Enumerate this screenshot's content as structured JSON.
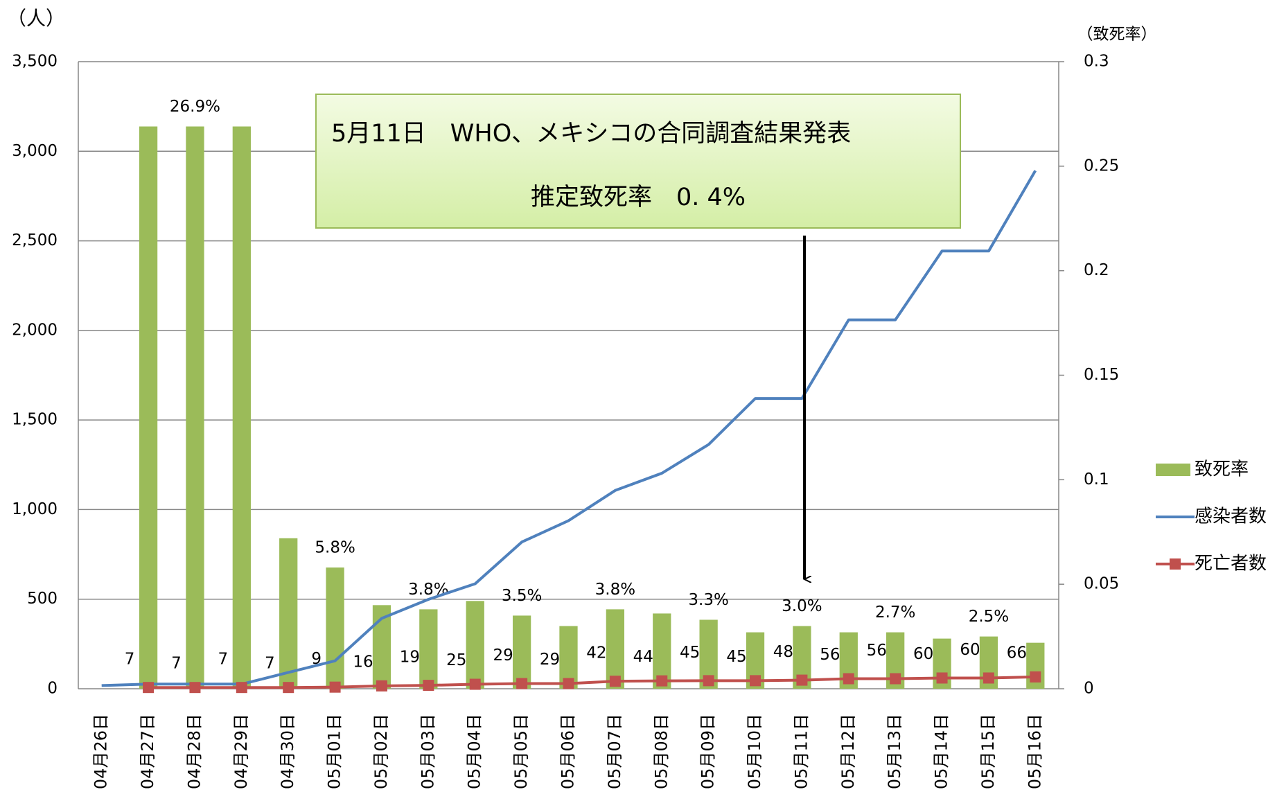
{
  "chart_data": {
    "type": "combo",
    "ylabel": "（人）",
    "y2label": "（致死率）",
    "categories": [
      "04月26日",
      "04月27日",
      "04月28日",
      "04月29日",
      "04月30日",
      "05月01日",
      "05月02日",
      "05月03日",
      "05月04日",
      "05月05日",
      "05月06日",
      "05月07日",
      "05月08日",
      "05月09日",
      "05月10日",
      "05月11日",
      "05月12日",
      "05月13日",
      "05月14日",
      "05月15日",
      "05月16日"
    ],
    "ylim": [
      0,
      3500
    ],
    "yticks": [
      0,
      500,
      {
        "value": 1000,
        "label": "1,000"
      },
      {
        "value": 1500,
        "label": "1,500"
      },
      {
        "value": 2000,
        "label": "2,000"
      },
      {
        "value": 2500,
        "label": "2,500"
      },
      {
        "value": 3000,
        "label": "3,000"
      },
      {
        "value": 3500,
        "label": "3,500"
      }
    ],
    "y2lim": [
      0,
      0.3
    ],
    "y2ticks": [
      0,
      0.05,
      0.1,
      0.15,
      0.2,
      0.25,
      0.3
    ],
    "grid": true,
    "legend": "right",
    "series": [
      {
        "name": "致死率",
        "type": "bar",
        "axis": "y2",
        "color": "#9bbb59",
        "values": [
          null,
          0.269,
          0.269,
          0.269,
          0.072,
          0.058,
          0.04,
          0.038,
          0.042,
          0.035,
          0.03,
          0.038,
          0.036,
          0.033,
          0.027,
          0.03,
          0.027,
          0.027,
          0.024,
          0.025,
          0.022
        ],
        "value_labels": [
          null,
          null,
          "26.9%",
          null,
          null,
          "5.8%",
          null,
          "3.8%",
          null,
          "3.5%",
          null,
          "3.8%",
          null,
          "3.3%",
          null,
          "3.0%",
          null,
          "2.7%",
          null,
          "2.5%",
          null
        ]
      },
      {
        "name": "感染者数",
        "type": "line",
        "color": "#4f81bd",
        "values": [
          18,
          26,
          26,
          26,
          91,
          156,
          393,
          499,
          586,
          819,
          938,
          1107,
          1203,
          1363,
          1620,
          1620,
          2059,
          2059,
          2443,
          2443,
          2892
        ]
      },
      {
        "name": "死亡者数",
        "type": "line",
        "markers": true,
        "data_labels": true,
        "color": "#c0504d",
        "values": [
          null,
          7,
          7,
          7,
          7,
          9,
          16,
          19,
          25,
          29,
          29,
          42,
          44,
          45,
          45,
          48,
          56,
          56,
          60,
          60,
          66
        ]
      }
    ],
    "annotation": {
      "lines": [
        "5月11日　WHO、メキシコの合同調査結果発表",
        "推定致死率　0. 4%"
      ]
    }
  }
}
